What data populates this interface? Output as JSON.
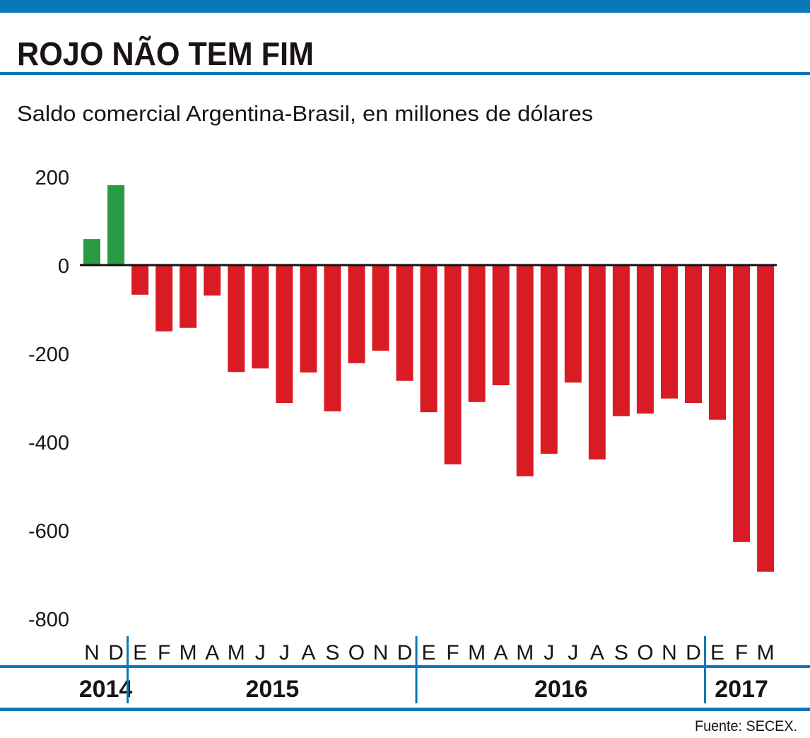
{
  "chart_data": {
    "type": "bar",
    "title": "ROJO NÃO TEM FIM",
    "subtitle": "Saldo comercial Argentina-Brasil, en millones de dólares",
    "source": "Fuente: SECEX.",
    "categories": [
      "N",
      "D",
      "E",
      "F",
      "M",
      "A",
      "M",
      "J",
      "J",
      "A",
      "S",
      "O",
      "N",
      "D",
      "E",
      "F",
      "M",
      "A",
      "M",
      "J",
      "J",
      "A",
      "S",
      "O",
      "N",
      "D",
      "E",
      "F",
      "M"
    ],
    "years": [
      {
        "label": "2014",
        "start": 0,
        "end": 1
      },
      {
        "label": "2015",
        "start": 2,
        "end": 13
      },
      {
        "label": "2016",
        "start": 14,
        "end": 25
      },
      {
        "label": "2017",
        "start": 26,
        "end": 28
      }
    ],
    "values": [
      59,
      181,
      -67,
      -150,
      -142,
      -69,
      -242,
      -234,
      -312,
      -243,
      -331,
      -222,
      -194,
      -262,
      -333,
      -451,
      -310,
      -272,
      -478,
      -427,
      -266,
      -440,
      -342,
      -336,
      -302,
      -312,
      -350,
      -627,
      -694
    ],
    "ylim": [
      -800,
      200
    ],
    "yticks": [
      "200",
      "0",
      "-200",
      "-400",
      "-600",
      "-800"
    ],
    "ytick_values": [
      200,
      0,
      -200,
      -400,
      -600,
      -800
    ],
    "grid": false,
    "colors": {
      "positive": "#2a9a45",
      "negative": "#d91c24",
      "accent": "#0a78b8"
    }
  }
}
